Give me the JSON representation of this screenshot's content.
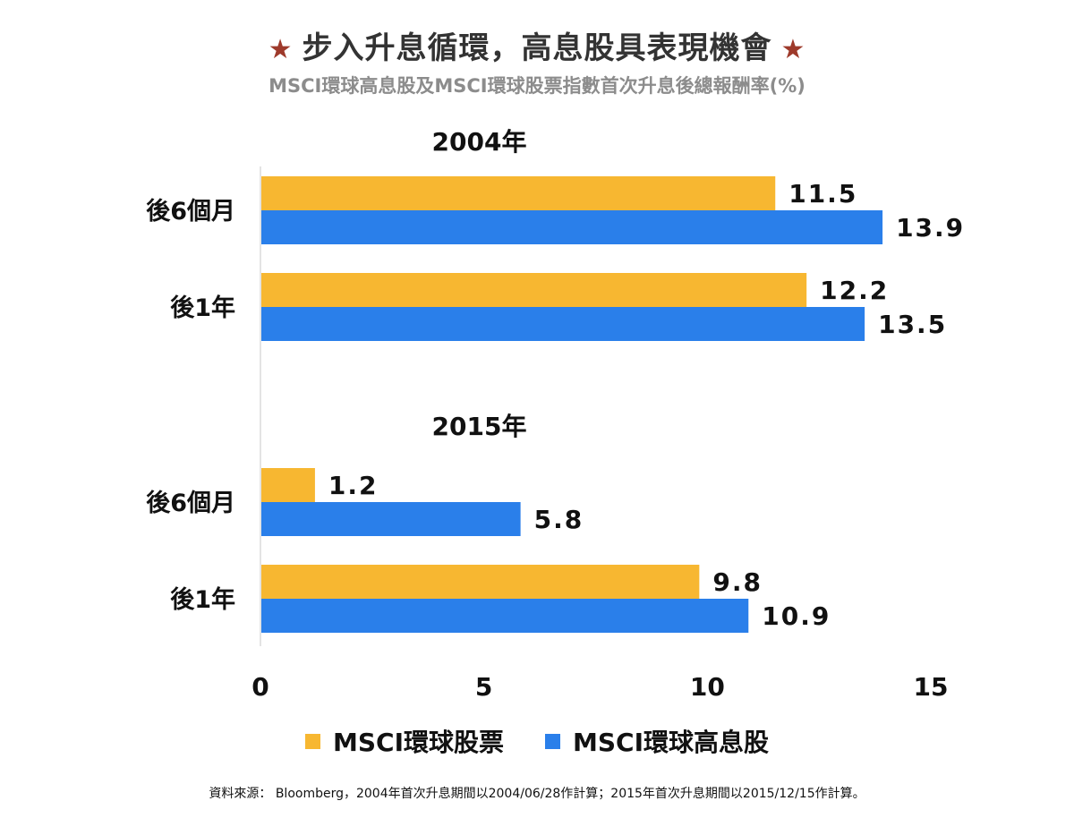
{
  "header": {
    "star_left": "★",
    "star_right": "★",
    "title": "步入升息循環，高息股具表現機會",
    "subtitle": "MSCI環球高息股及MSCI環球股票指數首次升息後總報酬率(%)"
  },
  "source_note": "資料來源： Bloomberg，2004年首次升息期間以2004/06/28作計算；2015年首次升息期間以2015/12/15作計算。",
  "colors": {
    "stocks": "#f7b731",
    "high_dividend": "#2a7fea",
    "axis": "#c8c8c8",
    "text": "#111111"
  },
  "chart_data": {
    "type": "bar",
    "orientation": "horizontal",
    "title": "步入升息循環，高息股具表現機會",
    "subtitle": "MSCI環球高息股及MSCI環球股票指數首次升息後總報酬率(%)",
    "xlim": [
      0,
      15
    ],
    "xticks": [
      0,
      5,
      10,
      15
    ],
    "legend_position": "bottom",
    "series": [
      {
        "name": "MSCI環球股票",
        "key": "stocks"
      },
      {
        "name": "MSCI環球高息股",
        "key": "high_dividend"
      }
    ],
    "groups": [
      {
        "label": "2004年",
        "rows": [
          {
            "label": "後6個月",
            "values": [
              11.5,
              13.9
            ]
          },
          {
            "label": "後1年",
            "values": [
              12.2,
              13.5
            ]
          }
        ]
      },
      {
        "label": "2015年",
        "rows": [
          {
            "label": "後6個月",
            "values": [
              1.2,
              5.8
            ]
          },
          {
            "label": "後1年",
            "values": [
              9.8,
              10.9
            ]
          }
        ]
      }
    ]
  }
}
